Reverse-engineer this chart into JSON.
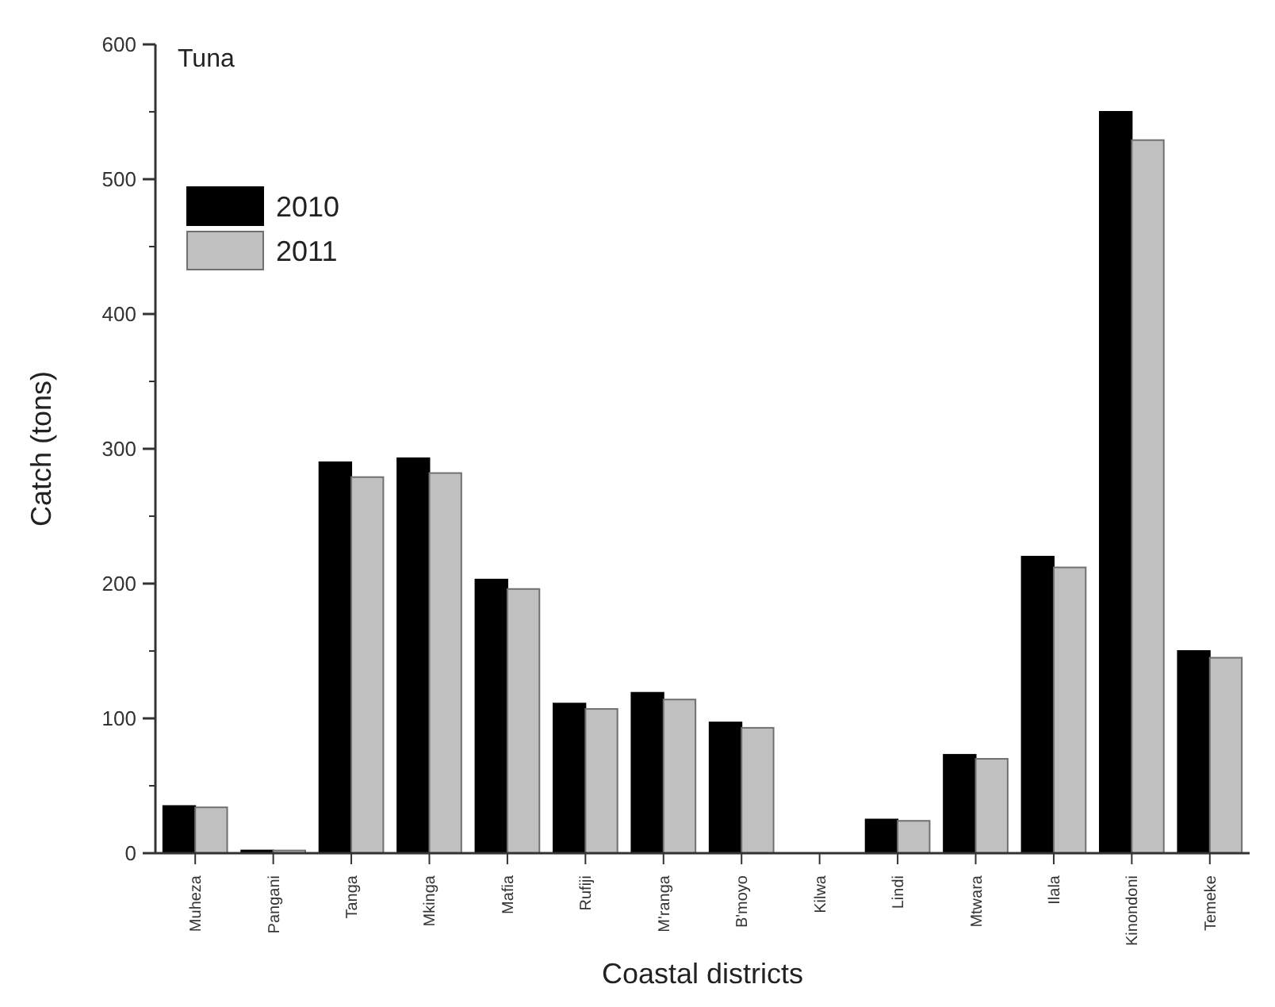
{
  "chart_data": {
    "type": "bar",
    "title": "Tuna",
    "xlabel": "Coastal districts",
    "ylabel": "Catch (tons)",
    "categories": [
      "Muheza",
      "Pangani",
      "Tanga",
      "Mkinga",
      "Mafia",
      "Rufiji",
      "M'ranga",
      "B'moyo",
      "Kilwa",
      "Lindi",
      "Mtwara",
      "Ilala",
      "Kinondoni",
      "Temeke"
    ],
    "series": [
      {
        "name": "2010",
        "color": "#000000",
        "values": [
          35,
          2,
          290,
          293,
          203,
          111,
          119,
          97,
          0,
          25,
          73,
          220,
          550,
          150
        ]
      },
      {
        "name": "2011",
        "color": "#c0c0c0",
        "values": [
          34,
          2,
          279,
          282,
          196,
          107,
          114,
          93,
          0,
          24,
          70,
          212,
          529,
          145
        ]
      }
    ],
    "ylim": [
      0,
      600
    ],
    "yticks": [
      0,
      {
        "value": 50,
        "label": null
      },
      100,
      {
        "value": 150,
        "label": null
      },
      200,
      {
        "value": 250,
        "label": null
      },
      300,
      {
        "value": 350,
        "label": null
      },
      400,
      {
        "value": 450,
        "label": null
      },
      500,
      {
        "value": 550,
        "label": null
      },
      600
    ],
    "grid": false,
    "legend": "top left"
  }
}
